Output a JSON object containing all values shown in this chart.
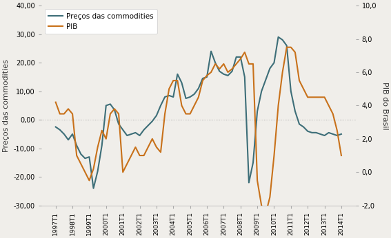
{
  "ylabel_left": "Preços das commodities",
  "ylabel_right": "PIB do Brasil",
  "commodities_color": "#3d6e78",
  "pib_color": "#c8711a",
  "background_color": "#f0eeea",
  "ylim_left": [
    -30,
    40
  ],
  "ylim_right": [
    -2.0,
    10.0
  ],
  "yticks_left": [
    -30,
    -20,
    -10,
    0,
    10,
    20,
    30,
    40
  ],
  "yticks_right": [
    -2.0,
    0.0,
    2.0,
    4.0,
    6.0,
    8.0,
    10.0
  ],
  "commodities_data": [
    -2.5,
    -3.5,
    -5.0,
    -7.0,
    -5.0,
    -9.0,
    -12.0,
    -13.5,
    -13.0,
    -24.0,
    -18.0,
    -9.0,
    5.0,
    5.5,
    3.5,
    -1.5,
    -3.5,
    -5.5,
    -5.0,
    -4.5,
    -5.5,
    -3.5,
    -2.0,
    -0.5,
    1.5,
    5.0,
    8.0,
    8.5,
    8.0,
    16.0,
    13.0,
    7.5,
    8.0,
    9.0,
    11.0,
    14.5,
    15.0,
    24.0,
    20.0,
    17.0,
    16.0,
    15.5,
    17.0,
    22.0,
    22.0,
    15.0,
    -22.0,
    -15.0,
    3.0,
    10.0,
    14.0,
    18.0,
    20.0,
    29.0,
    28.0,
    26.0,
    10.0,
    3.0,
    -1.5,
    -2.5,
    -4.0,
    -4.5,
    -4.5,
    -5.0,
    -5.5,
    -4.5,
    -5.0,
    -5.5,
    -5.0
  ],
  "pib_data": [
    4.2,
    3.5,
    3.5,
    3.8,
    3.5,
    1.0,
    0.5,
    0.0,
    -0.5,
    0.2,
    1.5,
    2.5,
    2.0,
    3.5,
    3.8,
    3.5,
    0.0,
    0.5,
    1.0,
    1.5,
    1.0,
    1.0,
    1.5,
    2.0,
    1.5,
    1.2,
    3.5,
    5.0,
    5.5,
    5.5,
    4.0,
    3.5,
    3.5,
    4.0,
    4.5,
    5.5,
    5.8,
    6.0,
    6.5,
    6.2,
    6.5,
    6.0,
    6.2,
    6.5,
    6.8,
    7.2,
    6.5,
    6.5,
    -0.5,
    -2.0,
    -2.5,
    -1.5,
    1.0,
    4.0,
    6.0,
    7.5,
    7.5,
    7.2,
    5.5,
    5.0,
    4.5,
    4.5,
    4.5,
    4.5,
    4.5,
    4.0,
    3.5,
    2.5,
    1.0
  ]
}
